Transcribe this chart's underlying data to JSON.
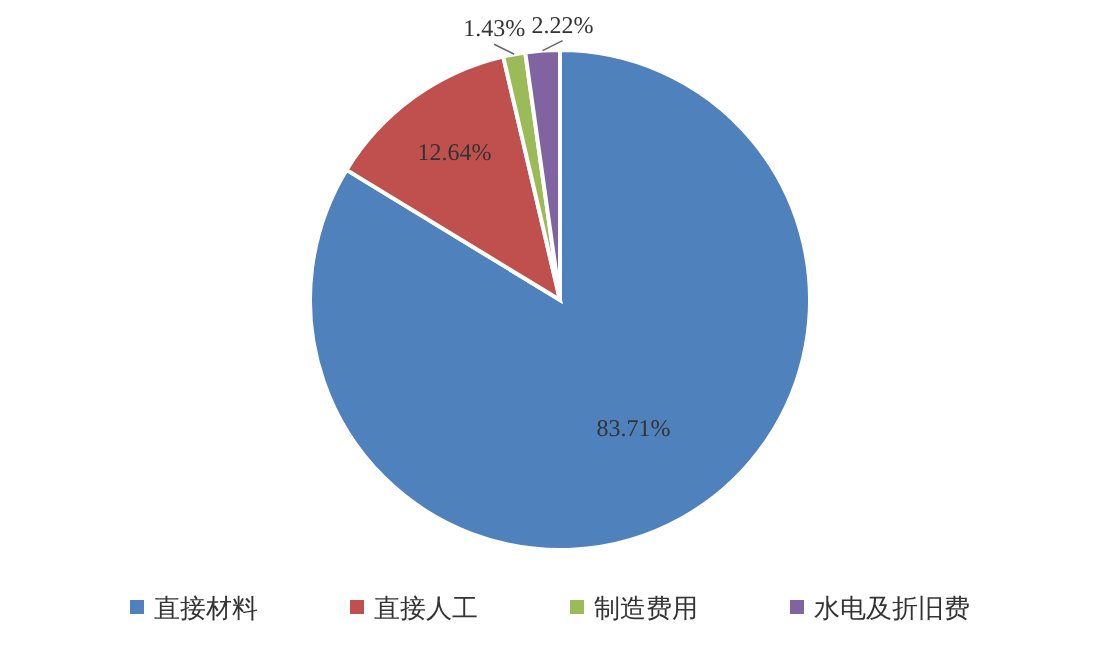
{
  "chart_data": {
    "type": "pie",
    "categories": [
      "直接材料",
      "直接人工",
      "制造费用",
      "水电及折旧费"
    ],
    "values": [
      83.71,
      12.64,
      1.43,
      2.22
    ],
    "colors": [
      "#4f81bd",
      "#c0504d",
      "#9bbb59",
      "#8064a2"
    ],
    "value_labels": [
      "83.71%",
      "12.64%",
      "1.43%",
      "2.22%"
    ],
    "legend": "bottom"
  }
}
